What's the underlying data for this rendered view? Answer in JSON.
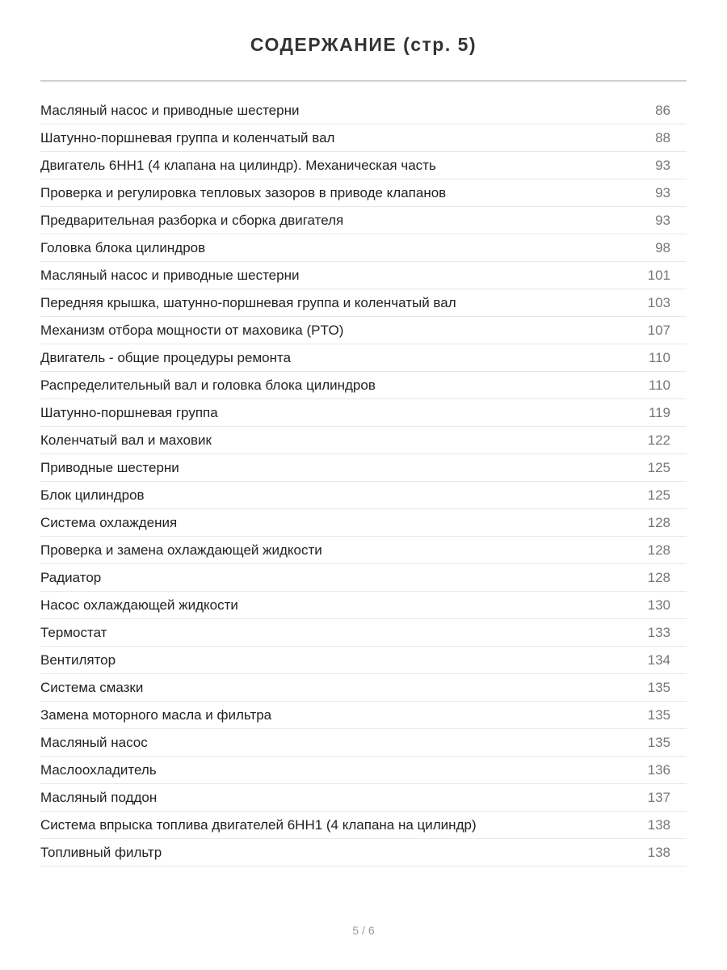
{
  "title": "СОДЕРЖАНИЕ (стр. 5)",
  "entries": [
    {
      "label": "Масляный насос и приводные шестерни",
      "page": "86"
    },
    {
      "label": "Шатунно-поршневая группа и коленчатый вал",
      "page": "88"
    },
    {
      "label": "Двигатель 6HH1 (4 клапана на цилиндр). Механическая часть",
      "page": "93"
    },
    {
      "label": "Проверка и регулировка тепловых зазоров в приводе клапанов",
      "page": "93"
    },
    {
      "label": "Предварительная разборка и сборка двигателя",
      "page": "93"
    },
    {
      "label": "Головка блока цилиндров",
      "page": "98"
    },
    {
      "label": "Масляный насос и приводные шестерни",
      "page": "101"
    },
    {
      "label": "Передняя крышка, шатунно-поршневая группа и коленчатый вал",
      "page": "103"
    },
    {
      "label": "Механизм отбора мощности от маховика (PTO)",
      "page": "107"
    },
    {
      "label": "Двигатель - общие процедуры ремонта",
      "page": "110"
    },
    {
      "label": "Распределительный вал и головка блока цилиндров",
      "page": "110"
    },
    {
      "label": "Шатунно-поршневая группа",
      "page": "119"
    },
    {
      "label": "Коленчатый вал и маховик",
      "page": "122"
    },
    {
      "label": "Приводные шестерни",
      "page": "125"
    },
    {
      "label": "Блок цилиндров",
      "page": "125"
    },
    {
      "label": "Система охлаждения",
      "page": "128"
    },
    {
      "label": "Проверка и замена охлаждающей жидкости",
      "page": "128"
    },
    {
      "label": "Радиатор",
      "page": "128"
    },
    {
      "label": "Насос охлаждающей жидкости",
      "page": "130"
    },
    {
      "label": "Термостат",
      "page": "133"
    },
    {
      "label": "Вентилятор",
      "page": "134"
    },
    {
      "label": "Система смазки",
      "page": "135"
    },
    {
      "label": "Замена моторного масла и фильтра",
      "page": "135"
    },
    {
      "label": "Масляный насос",
      "page": "135"
    },
    {
      "label": "Маслоохладитель",
      "page": "136"
    },
    {
      "label": "Масляный поддон",
      "page": "137"
    },
    {
      "label": "Система впрыска топлива двигателей 6HH1 (4 клапана на цилиндр)",
      "page": "138"
    },
    {
      "label": "Топливный фильтр",
      "page": "138"
    }
  ],
  "footer": "5 / 6"
}
